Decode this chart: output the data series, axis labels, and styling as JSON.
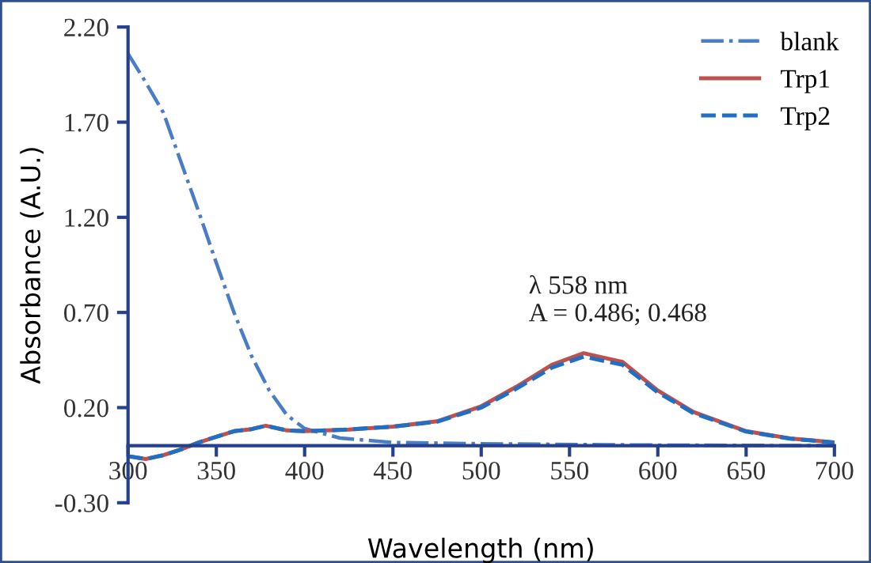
{
  "chart_data": {
    "type": "line",
    "xlabel": "Wavelength (nm)",
    "ylabel": "Absorbance (A.U.)",
    "xlim": [
      300,
      700
    ],
    "xticks": [
      300,
      350,
      400,
      450,
      500,
      550,
      600,
      650,
      700
    ],
    "ylim": [
      -0.3,
      2.2
    ],
    "yticks": [
      {
        "value": -0.3,
        "label": "-0.30"
      },
      {
        "value": 0.2,
        "label": "0.20"
      },
      {
        "value": 0.7,
        "label": "0.70"
      },
      {
        "value": 1.2,
        "label": "1.20"
      },
      {
        "value": 1.7,
        "label": "1.70"
      },
      {
        "value": 2.2,
        "label": "2.20"
      }
    ],
    "grid": false,
    "legend": "top right",
    "marker": "none",
    "annotations": [
      {
        "text": "λ 558 nm\nA = 0.486; 0.468",
        "x": 558,
        "y": 0.486
      }
    ],
    "series": [
      {
        "name": "blank",
        "color": "#4a7ec4",
        "line_style": "dashdot",
        "x": [
          300,
          310,
          320,
          330,
          340,
          350,
          360,
          370,
          380,
          390,
          400,
          420,
          450,
          500,
          600,
          700
        ],
        "values": [
          2.06,
          1.91,
          1.75,
          1.49,
          1.23,
          0.96,
          0.7,
          0.47,
          0.29,
          0.16,
          0.09,
          0.04,
          0.017,
          0.01,
          0.003,
          0.0
        ]
      },
      {
        "name": "Trp1",
        "color": "#c0504d",
        "line_style": "solid",
        "x": [
          300,
          310,
          320,
          330,
          340,
          350,
          360,
          370,
          378,
          390,
          400,
          425,
          450,
          475,
          500,
          520,
          540,
          558,
          580,
          600,
          620,
          650,
          675,
          700
        ],
        "values": [
          -0.055,
          -0.07,
          -0.05,
          -0.02,
          0.017,
          0.047,
          0.076,
          0.087,
          0.105,
          0.08,
          0.076,
          0.085,
          0.1,
          0.128,
          0.207,
          0.31,
          0.425,
          0.486,
          0.44,
          0.29,
          0.178,
          0.076,
          0.038,
          0.017
        ]
      },
      {
        "name": "Trp2",
        "color": "#1f6fc5",
        "line_style": "dashed",
        "x": [
          300,
          310,
          320,
          330,
          340,
          350,
          360,
          370,
          378,
          390,
          400,
          425,
          450,
          475,
          500,
          520,
          540,
          558,
          580,
          600,
          620,
          650,
          675,
          700
        ],
        "values": [
          -0.055,
          -0.07,
          -0.05,
          -0.02,
          0.017,
          0.047,
          0.076,
          0.087,
          0.105,
          0.08,
          0.076,
          0.085,
          0.1,
          0.126,
          0.2,
          0.3,
          0.41,
          0.468,
          0.425,
          0.28,
          0.172,
          0.074,
          0.037,
          0.016
        ]
      }
    ]
  }
}
